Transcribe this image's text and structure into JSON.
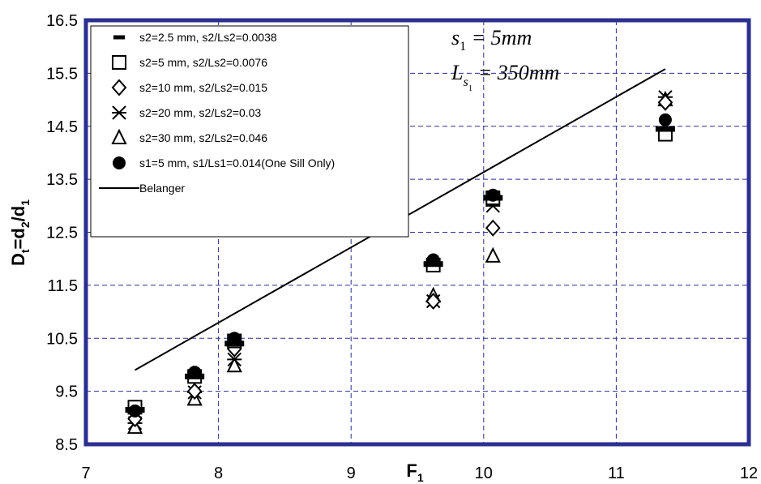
{
  "chart_data": {
    "type": "scatter",
    "xlabel": {
      "main": "F",
      "sub": "1"
    },
    "ylabel": {
      "parts": [
        {
          "text": "D",
          "sub": false
        },
        {
          "text": "t",
          "sub": true
        },
        {
          "text": "=d",
          "sub": false
        },
        {
          "text": "2",
          "sub": true
        },
        {
          "text": "/d",
          "sub": false
        },
        {
          "text": "1",
          "sub": true
        }
      ]
    },
    "xlim": [
      7,
      12
    ],
    "ylim": [
      8.5,
      16.5
    ],
    "xticks": [
      "7",
      "8",
      "9",
      "10",
      "11",
      "12"
    ],
    "yticks": [
      "8.5",
      "9.5",
      "10.5",
      "11.5",
      "12.5",
      "13.5",
      "14.5",
      "15.5",
      "16.5"
    ],
    "grid": true,
    "legend_position": "top-left",
    "annotations": {
      "line1": {
        "main": "s",
        "sub": "1",
        "rest": " = 5mm"
      },
      "line2": {
        "main": "L",
        "sub": "s",
        "subsub": "1",
        "rest": " = 350mm"
      }
    },
    "series": [
      {
        "name": "s2=2.5 mm, s2/Ls2=0.0038",
        "marker": "dash",
        "points": [
          [
            7.37,
            9.15
          ],
          [
            7.82,
            9.78
          ],
          [
            8.12,
            10.4
          ],
          [
            9.62,
            11.9
          ],
          [
            10.07,
            13.15
          ],
          [
            11.37,
            14.45
          ]
        ]
      },
      {
        "name": "s2=5 mm, s2/Ls2=0.0076",
        "marker": "square",
        "points": [
          [
            7.37,
            9.2
          ],
          [
            7.82,
            9.78
          ],
          [
            8.12,
            10.45
          ],
          [
            9.62,
            11.88
          ],
          [
            10.07,
            13.15
          ],
          [
            11.37,
            14.35
          ]
        ]
      },
      {
        "name": "s2=10 mm, s2/Ls2=0.015",
        "marker": "diamond",
        "points": [
          [
            7.37,
            8.98
          ],
          [
            7.82,
            9.5
          ],
          [
            8.12,
            10.3
          ],
          [
            9.62,
            11.2
          ],
          [
            10.07,
            12.58
          ],
          [
            11.37,
            14.95
          ]
        ]
      },
      {
        "name": "s2=20 mm, s2/Ls2=0.03",
        "marker": "asterisk",
        "points": [
          [
            7.37,
            8.9
          ],
          [
            7.82,
            9.48
          ],
          [
            8.12,
            10.1
          ],
          [
            9.62,
            11.2
          ],
          [
            10.07,
            13.0
          ],
          [
            11.37,
            15.05
          ]
        ]
      },
      {
        "name": "s2=30 mm, s2/Ls2=0.046",
        "marker": "triangle",
        "points": [
          [
            7.37,
            8.82
          ],
          [
            7.82,
            9.35
          ],
          [
            8.12,
            9.98
          ],
          [
            9.62,
            11.3
          ],
          [
            10.07,
            12.05
          ],
          [
            11.37,
            15.0
          ]
        ]
      },
      {
        "name": "s1=5 mm, s1/Ls1=0.014(One Sill Only)",
        "marker": "circle",
        "points": [
          [
            7.37,
            9.13
          ],
          [
            7.82,
            9.86
          ],
          [
            8.12,
            10.5
          ],
          [
            9.62,
            11.98
          ],
          [
            10.07,
            13.2
          ],
          [
            11.37,
            14.62
          ]
        ]
      },
      {
        "name": "Belanger",
        "marker": "line",
        "points": [
          [
            7.37,
            9.9
          ],
          [
            11.37,
            15.58
          ]
        ]
      }
    ]
  },
  "colors": {
    "frame": "#2b2f8f",
    "grid": "#2b2f8f",
    "ink": "#000000",
    "background": "#ffffff"
  }
}
